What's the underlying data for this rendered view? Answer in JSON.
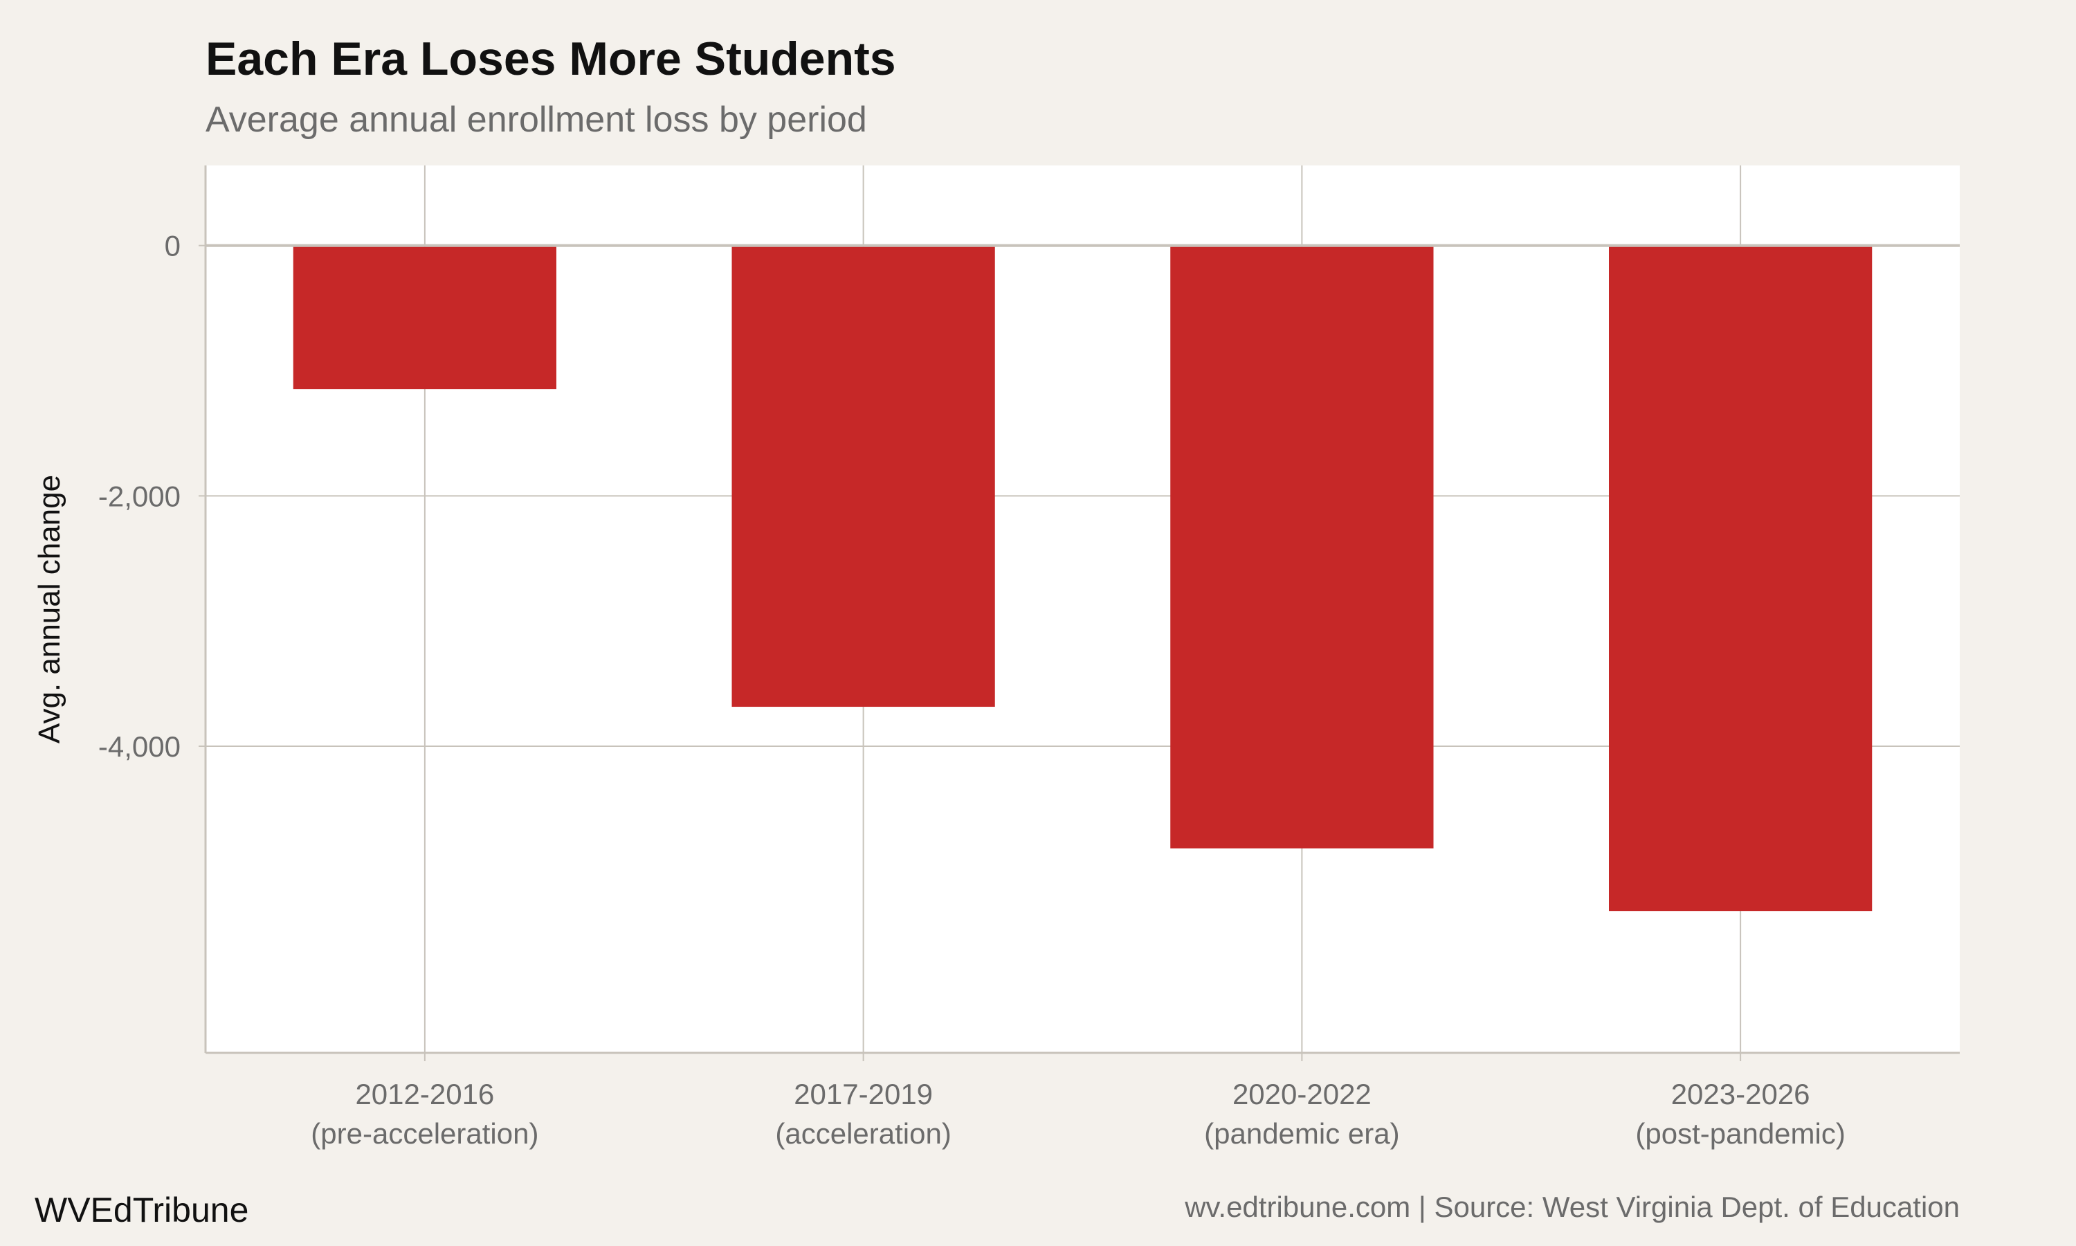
{
  "chart_data": {
    "type": "bar",
    "title": "Each Era Loses More Students",
    "subtitle": "Average annual enrollment loss by period",
    "xlabel": "",
    "ylabel": "Avg. annual change",
    "categories": [
      [
        "2012-2016",
        "(pre-acceleration)"
      ],
      [
        "2017-2019",
        "(acceleration)"
      ],
      [
        "2020-2022",
        "(pandemic era)"
      ],
      [
        "2023-2026",
        "(post-pandemic)"
      ]
    ],
    "values": [
      -1147,
      -3685,
      -4816,
      -5317
    ],
    "ylim": [
      -6450,
      640
    ],
    "yticks": [
      0,
      -2000,
      -4000
    ],
    "ytick_labels": [
      "0",
      "-2,000",
      "-4,000"
    ],
    "grid": true,
    "legend": "none",
    "bar_color": "#c62828",
    "brand": "WVEdTribune",
    "source": "wv.edtribune.com | Source: West Virginia Dept. of Education"
  }
}
